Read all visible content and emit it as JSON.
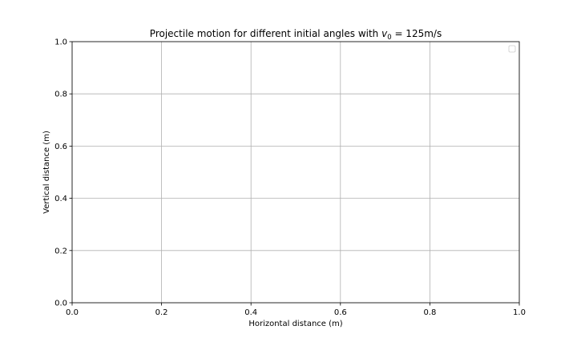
{
  "chart_data": {
    "type": "line",
    "title_prefix": "Projectile motion for different initial angles with ",
    "title_symbol": "v",
    "title_subscript": "0",
    "title_suffix": " = 125m/s",
    "xlabel": "Horizontal distance (m)",
    "ylabel": "Vertical distance (m)",
    "xlim": [
      0,
      1
    ],
    "ylim": [
      0,
      1
    ],
    "xticks": [
      0.0,
      0.2,
      0.4,
      0.6,
      0.8,
      1.0
    ],
    "yticks": [
      0.0,
      0.2,
      0.4,
      0.6,
      0.8,
      1.0
    ],
    "xtick_labels": [
      "0.0",
      "0.2",
      "0.4",
      "0.6",
      "0.8",
      "1.0"
    ],
    "ytick_labels": [
      "0.0",
      "0.2",
      "0.4",
      "0.6",
      "0.8",
      "1.0"
    ],
    "grid": true,
    "legend_position": "top-right",
    "legend_entries": [],
    "series": [],
    "colors": {
      "axis": "#000000",
      "grid": "#b0b0b0",
      "legend_border": "#cccccc",
      "background": "#ffffff"
    }
  }
}
